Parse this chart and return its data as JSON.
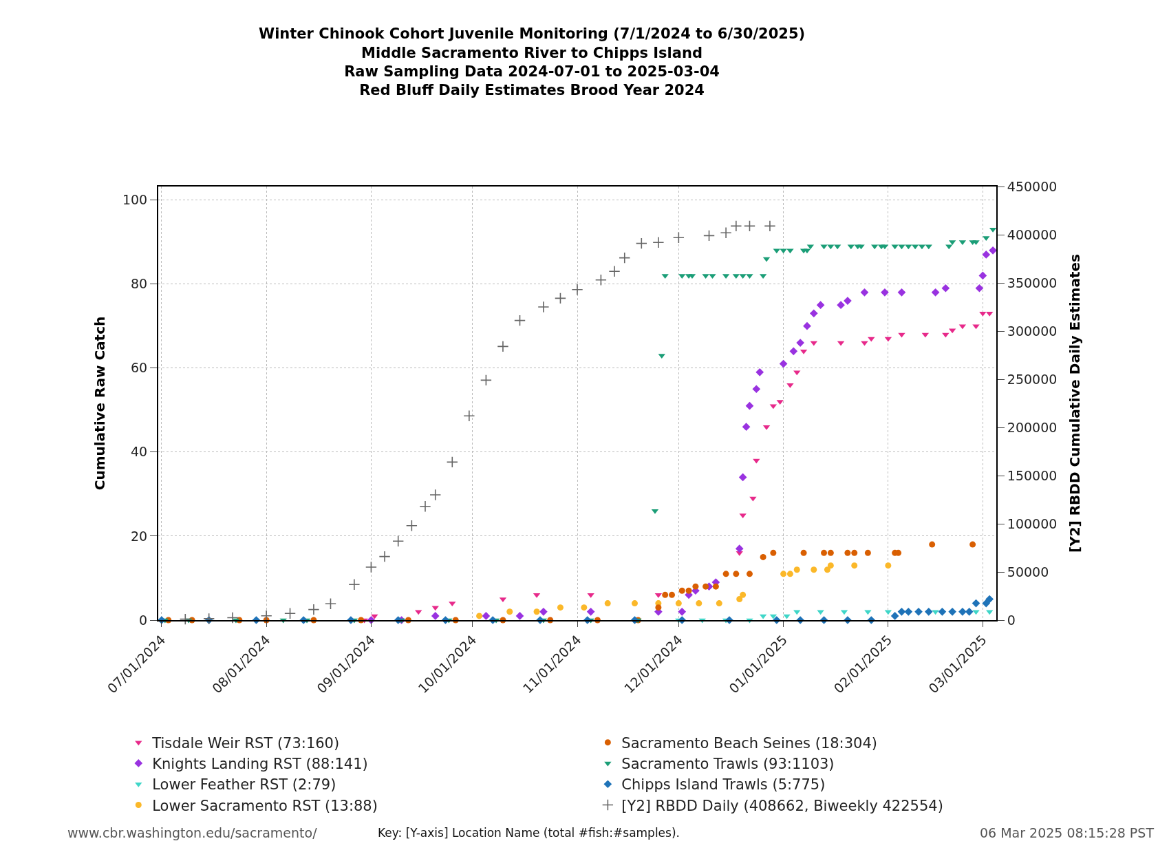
{
  "chart_data": {
    "type": "scatter",
    "title": "Winter Chinook Cohort Juvenile Monitoring (7/1/2024 to 6/30/2025)\nMiddle Sacramento River to Chipps Island\nRaw Sampling Data 2024-07-01 to 2025-03-04\nRed Bluff Daily Estimates Brood Year 2024",
    "ylabel": "Cumulative Raw Catch",
    "y2label": "[Y2] RBDD Cumulative Daily Estimates",
    "xlim": [
      "2024-06-30",
      "2025-03-05"
    ],
    "xticks": [
      {
        "value": "2024-07-01",
        "label": "07/01/2024"
      },
      {
        "value": "2024-08-01",
        "label": "08/01/2024"
      },
      {
        "value": "2024-09-01",
        "label": "09/01/2024"
      },
      {
        "value": "2024-10-01",
        "label": "10/01/2024"
      },
      {
        "value": "2024-11-01",
        "label": "11/01/2024"
      },
      {
        "value": "2024-12-01",
        "label": "12/01/2024"
      },
      {
        "value": "2025-01-01",
        "label": "01/01/2025"
      },
      {
        "value": "2025-02-01",
        "label": "02/01/2025"
      },
      {
        "value": "2025-03-01",
        "label": "03/01/2025"
      }
    ],
    "ylim": [
      0,
      103.2
    ],
    "yticks": [
      0,
      20,
      40,
      60,
      80,
      100
    ],
    "y2lim": [
      0,
      450000
    ],
    "y2ticks": [
      0,
      50000,
      100000,
      150000,
      200000,
      250000,
      300000,
      350000,
      400000,
      450000
    ],
    "grid": true,
    "legend": "bottom",
    "series": [
      {
        "name": "Tisdale Weir RST (73:160)",
        "color": "#e7298a",
        "marker": "triangle",
        "x": [
          "2024-08-30",
          "2024-09-02",
          "2024-09-15",
          "2024-09-20",
          "2024-09-25",
          "2024-10-10",
          "2024-10-20",
          "2024-11-05",
          "2024-11-25",
          "2024-12-19",
          "2024-12-20",
          "2024-12-23",
          "2024-12-24",
          "2024-12-27",
          "2024-12-29",
          "2024-12-31",
          "2025-01-03",
          "2025-01-05",
          "2025-01-07",
          "2025-01-10",
          "2025-01-18",
          "2025-01-25",
          "2025-01-27",
          "2025-02-01",
          "2025-02-05",
          "2025-02-12",
          "2025-02-18",
          "2025-02-20",
          "2025-02-23",
          "2025-02-27",
          "2025-03-01",
          "2025-03-03"
        ],
        "values": [
          0,
          1,
          2,
          3,
          4,
          5,
          6,
          6,
          6,
          16,
          25,
          29,
          38,
          46,
          51,
          52,
          56,
          59,
          64,
          66,
          66,
          66,
          67,
          67,
          68,
          68,
          68,
          69,
          70,
          70,
          73,
          73
        ]
      },
      {
        "name": "Knights Landing RST (88:141)",
        "color": "#9932e0",
        "marker": "diamond",
        "x": [
          "2024-09-01",
          "2024-09-10",
          "2024-09-20",
          "2024-10-05",
          "2024-10-15",
          "2024-10-22",
          "2024-11-05",
          "2024-11-25",
          "2024-12-02",
          "2024-12-04",
          "2024-12-06",
          "2024-12-10",
          "2024-12-12",
          "2024-12-19",
          "2024-12-20",
          "2024-12-21",
          "2024-12-22",
          "2024-12-24",
          "2024-12-25",
          "2025-01-01",
          "2025-01-04",
          "2025-01-06",
          "2025-01-08",
          "2025-01-10",
          "2025-01-12",
          "2025-01-18",
          "2025-01-20",
          "2025-01-25",
          "2025-01-31",
          "2025-02-05",
          "2025-02-15",
          "2025-02-18",
          "2025-02-28",
          "2025-03-01",
          "2025-03-02",
          "2025-03-04"
        ],
        "values": [
          0,
          0,
          1,
          1,
          1,
          2,
          2,
          2,
          2,
          6,
          7,
          8,
          9,
          17,
          34,
          46,
          51,
          55,
          59,
          61,
          64,
          66,
          70,
          73,
          75,
          75,
          76,
          78,
          78,
          78,
          78,
          79,
          79,
          82,
          87,
          88
        ]
      },
      {
        "name": "Lower Feather RST (2:79)",
        "color": "#3fd6c8",
        "marker": "triangle",
        "x": [
          "2024-12-01",
          "2024-12-08",
          "2024-12-15",
          "2024-12-22",
          "2024-12-26",
          "2024-12-29",
          "2025-01-02",
          "2025-01-05",
          "2025-01-12",
          "2025-01-19",
          "2025-01-26",
          "2025-02-01",
          "2025-02-15",
          "2025-02-27",
          "2025-03-03"
        ],
        "values": [
          0,
          0,
          0,
          0,
          1,
          1,
          1,
          2,
          2,
          2,
          2,
          2,
          2,
          2,
          2
        ]
      },
      {
        "name": "Lower Sacramento RST (13:88)",
        "color": "#fbb829",
        "marker": "circle",
        "x": [
          "2024-10-03",
          "2024-10-12",
          "2024-10-20",
          "2024-10-27",
          "2024-11-03",
          "2024-11-10",
          "2024-11-18",
          "2024-11-25",
          "2024-12-01",
          "2024-12-07",
          "2024-12-13",
          "2024-12-19",
          "2024-12-20",
          "2025-01-01",
          "2025-01-03",
          "2025-01-05",
          "2025-01-10",
          "2025-01-14",
          "2025-01-15",
          "2025-01-22",
          "2025-02-01"
        ],
        "values": [
          1,
          2,
          2,
          3,
          3,
          4,
          4,
          4,
          4,
          4,
          4,
          5,
          6,
          11,
          11,
          12,
          12,
          12,
          13,
          13,
          13
        ]
      },
      {
        "name": "Sacramento Beach Seines (18:304)",
        "color": "#d95f02",
        "marker": "circle",
        "x": [
          "2024-07-03",
          "2024-07-10",
          "2024-07-24",
          "2024-08-01",
          "2024-08-15",
          "2024-08-29",
          "2024-09-12",
          "2024-09-26",
          "2024-10-10",
          "2024-10-24",
          "2024-11-07",
          "2024-11-19",
          "2024-11-25",
          "2024-11-27",
          "2024-11-29",
          "2024-12-02",
          "2024-12-04",
          "2024-12-06",
          "2024-12-09",
          "2024-12-12",
          "2024-12-15",
          "2024-12-18",
          "2024-12-22",
          "2024-12-26",
          "2024-12-29",
          "2025-01-07",
          "2025-01-13",
          "2025-01-15",
          "2025-01-20",
          "2025-01-22",
          "2025-01-26",
          "2025-02-03",
          "2025-02-04",
          "2025-02-14",
          "2025-02-26"
        ],
        "values": [
          0,
          0,
          0,
          0,
          0,
          0,
          0,
          0,
          0,
          0,
          0,
          0,
          3,
          6,
          6,
          7,
          7,
          8,
          8,
          8,
          11,
          11,
          11,
          15,
          16,
          16,
          16,
          16,
          16,
          16,
          16,
          16,
          16,
          18,
          18
        ]
      },
      {
        "name": "Sacramento Trawls (93:1103)",
        "color": "#1b9e77",
        "marker": "triangle",
        "x": [
          "2024-07-02",
          "2024-07-09",
          "2024-07-23",
          "2024-08-06",
          "2024-08-13",
          "2024-08-27",
          "2024-09-10",
          "2024-09-24",
          "2024-10-08",
          "2024-10-22",
          "2024-11-05",
          "2024-11-19",
          "2024-11-24",
          "2024-11-26",
          "2024-11-27",
          "2024-12-02",
          "2024-12-04",
          "2024-12-05",
          "2024-12-09",
          "2024-12-11",
          "2024-12-15",
          "2024-12-18",
          "2024-12-20",
          "2024-12-22",
          "2024-12-26",
          "2024-12-27",
          "2024-12-30",
          "2025-01-01",
          "2025-01-03",
          "2025-01-07",
          "2025-01-08",
          "2025-01-09",
          "2025-01-13",
          "2025-01-15",
          "2025-01-17",
          "2025-01-21",
          "2025-01-23",
          "2025-01-24",
          "2025-01-28",
          "2025-01-30",
          "2025-01-31",
          "2025-02-03",
          "2025-02-05",
          "2025-02-07",
          "2025-02-09",
          "2025-02-11",
          "2025-02-13",
          "2025-02-19",
          "2025-02-20",
          "2025-02-23",
          "2025-02-26",
          "2025-02-27",
          "2025-03-02",
          "2025-03-04"
        ],
        "values": [
          0,
          0,
          0,
          0,
          0,
          0,
          0,
          0,
          0,
          0,
          0,
          0,
          26,
          63,
          82,
          82,
          82,
          82,
          82,
          82,
          82,
          82,
          82,
          82,
          82,
          86,
          88,
          88,
          88,
          88,
          88,
          89,
          89,
          89,
          89,
          89,
          89,
          89,
          89,
          89,
          89,
          89,
          89,
          89,
          89,
          89,
          89,
          89,
          90,
          90,
          90,
          90,
          91,
          93
        ]
      },
      {
        "name": "Chipps Island Trawls (5:775)",
        "color": "#1f73b8",
        "marker": "diamond",
        "x": [
          "2024-07-01",
          "2024-07-15",
          "2024-07-29",
          "2024-08-12",
          "2024-08-26",
          "2024-09-09",
          "2024-09-23",
          "2024-10-07",
          "2024-10-21",
          "2024-11-04",
          "2024-11-18",
          "2024-12-02",
          "2024-12-16",
          "2024-12-30",
          "2025-01-06",
          "2025-01-13",
          "2025-01-20",
          "2025-01-27",
          "2025-02-03",
          "2025-02-05",
          "2025-02-07",
          "2025-02-10",
          "2025-02-13",
          "2025-02-17",
          "2025-02-20",
          "2025-02-23",
          "2025-02-25",
          "2025-02-27",
          "2025-03-02",
          "2025-03-03"
        ],
        "values": [
          0,
          0,
          0,
          0,
          0,
          0,
          0,
          0,
          0,
          0,
          0,
          0,
          0,
          0,
          0,
          0,
          0,
          0,
          1,
          2,
          2,
          2,
          2,
          2,
          2,
          2,
          2,
          4,
          4,
          5
        ]
      },
      {
        "name": "[Y2] RBDD Daily (408662, Biweekly 422554)",
        "color": "#666666",
        "marker": "cross",
        "axis": "y2",
        "x": [
          "2024-07-08",
          "2024-07-15",
          "2024-07-22",
          "2024-08-01",
          "2024-08-08",
          "2024-08-15",
          "2024-08-20",
          "2024-08-27",
          "2024-09-01",
          "2024-09-05",
          "2024-09-09",
          "2024-09-13",
          "2024-09-17",
          "2024-09-20",
          "2024-09-25",
          "2024-09-30",
          "2024-10-05",
          "2024-10-10",
          "2024-10-15",
          "2024-10-22",
          "2024-10-27",
          "2024-11-01",
          "2024-11-08",
          "2024-11-12",
          "2024-11-15",
          "2024-11-20",
          "2024-11-25",
          "2024-12-01",
          "2024-12-10",
          "2024-12-15",
          "2024-12-18",
          "2024-12-22",
          "2024-12-28"
        ],
        "values": [
          1000,
          1500,
          2500,
          4500,
          7000,
          11000,
          17000,
          37000,
          55000,
          66000,
          82000,
          98000,
          118000,
          130000,
          164000,
          212000,
          249000,
          284000,
          311000,
          325000,
          334000,
          343000,
          353000,
          362000,
          376000,
          391000,
          392000,
          397000,
          399000,
          402000,
          409000,
          409000,
          409000
        ]
      }
    ],
    "annotations": [
      "www.cbr.washington.edu/sacramento/",
      "Key: [Y-axis] Location Name (total #fish:#samples).",
      "06 Mar 2025 08:15:28 PST"
    ]
  }
}
